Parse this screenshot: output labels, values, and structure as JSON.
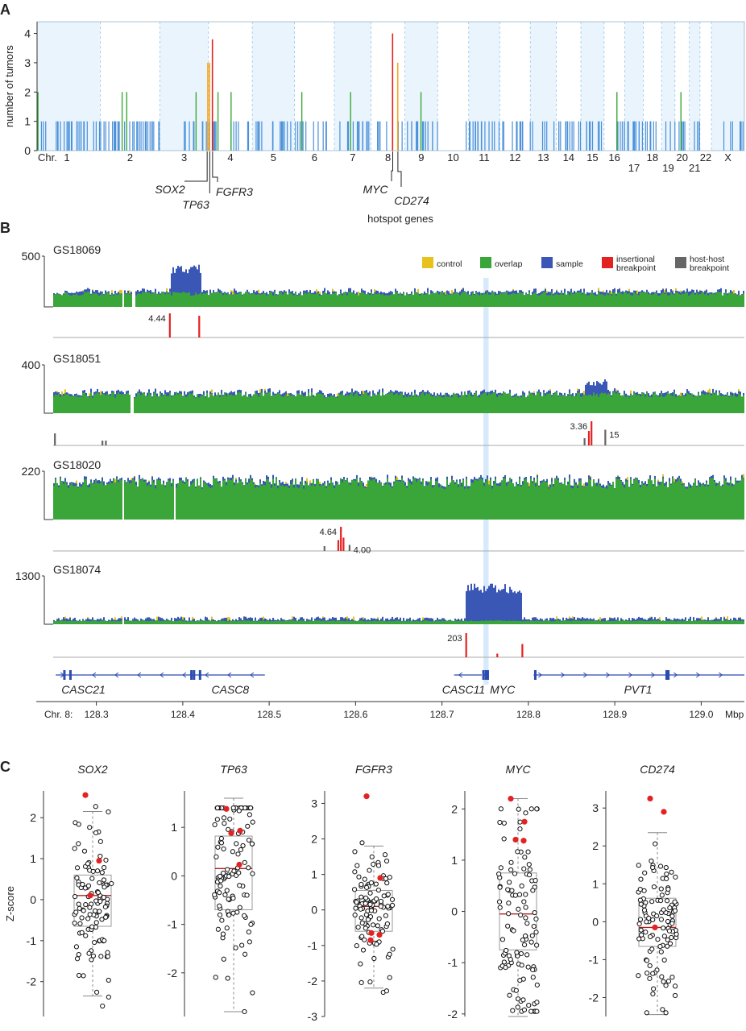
{
  "colors": {
    "chrom_band": "#e9f4fd",
    "chrom_sep": "#9cc7e6",
    "blue_bar": "#4a90d9",
    "green_bar": "#3aaa35",
    "orange_bar": "#f5a623",
    "red_bar": "#e32222",
    "control": "#e8c21a",
    "overlap": "#3aa63a",
    "sample": "#3b57b5",
    "insertional": "#e32222",
    "hosthost": "#666666",
    "gene": "#2b4bb0",
    "box_median": "#b02020",
    "red_point": "#e32222"
  },
  "chart_data": [
    {
      "panel": "A",
      "type": "bar",
      "ylabel": "number of tumors",
      "ylim": [
        0,
        4.4
      ],
      "yticks": [
        0,
        1,
        2,
        3,
        4
      ],
      "x_prefix": "Chr.",
      "chromosomes": [
        {
          "label": "1",
          "start": 0,
          "end": 0.0895
        },
        {
          "label": "2",
          "start": 0.0895,
          "end": 0.1736
        },
        {
          "label": "3",
          "start": 0.1736,
          "end": 0.2423
        },
        {
          "label": "4",
          "start": 0.2423,
          "end": 0.3043
        },
        {
          "label": "5",
          "start": 0.3043,
          "end": 0.364
        },
        {
          "label": "6",
          "start": 0.364,
          "end": 0.4203
        },
        {
          "label": "7",
          "start": 0.4203,
          "end": 0.4722
        },
        {
          "label": "8",
          "start": 0.4722,
          "end": 0.5201
        },
        {
          "label": "9",
          "start": 0.5201,
          "end": 0.5663
        },
        {
          "label": "10",
          "start": 0.5663,
          "end": 0.6102
        },
        {
          "label": "11",
          "start": 0.6102,
          "end": 0.6541
        },
        {
          "label": "12",
          "start": 0.6541,
          "end": 0.6973
        },
        {
          "label": "13",
          "start": 0.6973,
          "end": 0.7342
        },
        {
          "label": "14",
          "start": 0.7342,
          "end": 0.7688
        },
        {
          "label": "15",
          "start": 0.7688,
          "end": 0.8017
        },
        {
          "label": "16",
          "start": 0.8017,
          "end": 0.8307
        },
        {
          "label": "17",
          "start": 0.8307,
          "end": 0.8572
        },
        {
          "label": "18",
          "start": 0.8572,
          "end": 0.8829
        },
        {
          "label": "19",
          "start": 0.8829,
          "end": 0.9018
        },
        {
          "label": "20",
          "start": 0.9018,
          "end": 0.9222
        },
        {
          "label": "21",
          "start": 0.9222,
          "end": 0.9372
        },
        {
          "label": "22",
          "start": 0.9372,
          "end": 0.9535
        },
        {
          "label": "X",
          "start": 0.9535,
          "end": 1.0
        }
      ],
      "hotspot_bars": [
        {
          "pos": 0.2405,
          "value": 3,
          "color": "orange"
        },
        {
          "pos": 0.243,
          "value": 3,
          "color": "orange"
        },
        {
          "pos": 0.247,
          "value": 3.8,
          "color": "red"
        },
        {
          "pos": 0.5017,
          "value": 4,
          "color": "red"
        },
        {
          "pos": 0.509,
          "value": 3,
          "color": "orange"
        }
      ],
      "green_bars": [
        0.0005,
        0.1195,
        0.126,
        0.224,
        0.255,
        0.2735,
        0.3735,
        0.4425,
        0.542,
        0.819,
        0.9095
      ],
      "blue_seed": 17,
      "blue_count": 230,
      "hotspot_title": "hotspot genes",
      "hotspot_genes": [
        {
          "name": "SOX2",
          "pos": 0.2405
        },
        {
          "name": "TP63",
          "pos": 0.243
        },
        {
          "name": "FGFR3",
          "pos": 0.247
        },
        {
          "name": "MYC",
          "pos": 0.5017
        },
        {
          "name": "CD274",
          "pos": 0.509
        }
      ]
    },
    {
      "panel": "B",
      "type": "area",
      "xlim": [
        128.25,
        129.05
      ],
      "x_prefix": "Chr. 8:",
      "x_unit": "Mbp",
      "xticks": [
        128.3,
        128.4,
        128.5,
        128.6,
        128.7,
        128.8,
        128.9,
        129.0
      ],
      "highlight": [
        128.748,
        128.754
      ],
      "legend": [
        {
          "label": "control",
          "color": "control"
        },
        {
          "label": "overlap",
          "color": "overlap"
        },
        {
          "label": "sample",
          "color": "sample"
        },
        {
          "label": "insertional\nbreakpoint",
          "color": "insertional"
        },
        {
          "label": "host-host\nbreakpoint",
          "color": "hosthost"
        }
      ],
      "tracks": [
        {
          "sample": "GS18069",
          "ymax": 500,
          "base": 0.26,
          "amplicons": [
            {
              "start": 128.385,
              "end": 128.42,
              "height": 0.8
            }
          ],
          "gaps": [
            128.33,
            128.342
          ],
          "breakpoints": [
            {
              "pos": 128.384,
              "h": 1.0,
              "type": "insertional",
              "label": "4.44"
            },
            {
              "pos": 128.418,
              "h": 0.9,
              "type": "insertional"
            }
          ]
        },
        {
          "sample": "GS18051",
          "ymax": 400,
          "base": 0.38,
          "amplicons": [
            {
              "start": 128.864,
              "end": 128.89,
              "height": 0.7
            }
          ],
          "gaps": [
            128.34
          ],
          "breakpoints": [
            {
              "pos": 128.251,
              "h": 0.5,
              "type": "hosthost"
            },
            {
              "pos": 128.306,
              "h": 0.2,
              "type": "hosthost"
            },
            {
              "pos": 128.31,
              "h": 0.2,
              "type": "hosthost"
            },
            {
              "pos": 128.864,
              "h": 0.3,
              "type": "hosthost"
            },
            {
              "pos": 128.869,
              "h": 0.6,
              "type": "insertional"
            },
            {
              "pos": 128.872,
              "h": 1.0,
              "type": "insertional",
              "label": "3.36"
            },
            {
              "pos": 128.888,
              "h": 0.65,
              "type": "hosthost",
              "label": "15",
              "label_side": "right"
            }
          ]
        },
        {
          "sample": "GS18020",
          "ymax": 220,
          "base": 0.75,
          "amplicons": [],
          "gaps": [
            128.33,
            128.39
          ],
          "breakpoints": [
            {
              "pos": 128.563,
              "h": 0.2,
              "type": "hosthost"
            },
            {
              "pos": 128.579,
              "h": 0.45,
              "type": "insertional"
            },
            {
              "pos": 128.582,
              "h": 1.0,
              "type": "insertional",
              "label": "4.64"
            },
            {
              "pos": 128.585,
              "h": 0.55,
              "type": "insertional"
            },
            {
              "pos": 128.592,
              "h": 0.25,
              "type": "hosthost",
              "label": "4.00",
              "label_side": "right"
            }
          ]
        },
        {
          "sample": "GS18074",
          "ymax": 1300,
          "base": 0.07,
          "amplicons": [
            {
              "start": 128.727,
              "end": 128.792,
              "height": 0.8
            }
          ],
          "gaps": [
            128.33
          ],
          "breakpoints": [
            {
              "pos": 128.727,
              "h": 1.0,
              "type": "insertional",
              "label": "203"
            },
            {
              "pos": 128.763,
              "h": 0.15,
              "type": "insertional"
            },
            {
              "pos": 128.792,
              "h": 0.55,
              "type": "insertional"
            }
          ]
        }
      ],
      "genes": [
        {
          "name": "CASC21",
          "start": 128.253,
          "end": 128.29,
          "dir": 1,
          "label_pos": 128.285,
          "exons": [
            128.263,
            128.27
          ]
        },
        {
          "name": "CASC8",
          "start": 128.29,
          "end": 128.495,
          "dir": -1,
          "label_pos": 128.455,
          "exons": [
            128.41,
            128.413,
            128.42
          ]
        },
        {
          "name": "CASC11",
          "start": 128.714,
          "end": 128.746,
          "dir": -1,
          "label_pos": 128.725,
          "exons": []
        },
        {
          "name": "MYC",
          "start": 128.748,
          "end": 128.754,
          "dir": 1,
          "label_pos": 128.77,
          "exons": [
            128.748,
            128.751,
            128.753
          ]
        },
        {
          "name": "PVT1",
          "start": 128.806,
          "end": 129.05,
          "dir": 1,
          "label_pos": 128.927,
          "exons": [
            128.808,
            128.96,
            128.962
          ]
        }
      ]
    },
    {
      "panel": "C",
      "type": "scatter",
      "ylabel": "Z-score",
      "boxes": [
        {
          "gene": "SOX2",
          "ylim": [
            -2.85,
            2.65
          ],
          "yticks": [
            -2,
            -1,
            0,
            1,
            2
          ],
          "q1": -0.65,
          "median": 0.1,
          "q3": 0.6,
          "wlo": -2.35,
          "whi": 2.15,
          "red_points": [
            2.55,
            0.95,
            0.1
          ],
          "seed": 3
        },
        {
          "gene": "TP63",
          "ylim": [
            -2.9,
            1.75
          ],
          "yticks": [
            -2,
            -1,
            0,
            1
          ],
          "q1": -0.7,
          "median": 0.15,
          "q3": 0.82,
          "wlo": -2.8,
          "whi": 1.6,
          "red_points": [
            1.38,
            0.93,
            0.88,
            0.23
          ],
          "seed": 5
        },
        {
          "gene": "FGFR3",
          "ylim": [
            -3.0,
            3.35
          ],
          "yticks": [
            -3,
            -2,
            -1,
            0,
            1,
            2,
            3
          ],
          "q1": -0.6,
          "median": 0.1,
          "q3": 0.55,
          "wlo": -2.2,
          "whi": 1.8,
          "red_points": [
            3.2,
            0.9,
            -0.65,
            -0.7,
            -0.85
          ],
          "seed": 7
        },
        {
          "gene": "MYC",
          "ylim": [
            -2.05,
            2.35
          ],
          "yticks": [
            -2,
            -1,
            0,
            1,
            2
          ],
          "q1": -0.75,
          "median": -0.05,
          "q3": 0.75,
          "wlo": -2.05,
          "whi": 2.2,
          "red_points": [
            2.2,
            1.75,
            1.4,
            1.38
          ],
          "seed": 11
        },
        {
          "gene": "CD274",
          "ylim": [
            -2.5,
            3.45
          ],
          "yticks": [
            -2,
            -1,
            0,
            1,
            2,
            3
          ],
          "q1": -0.65,
          "median": -0.15,
          "q3": 0.62,
          "wlo": -2.45,
          "whi": 2.35,
          "red_points": [
            3.25,
            2.9,
            -0.15
          ],
          "seed": 13
        }
      ]
    }
  ]
}
